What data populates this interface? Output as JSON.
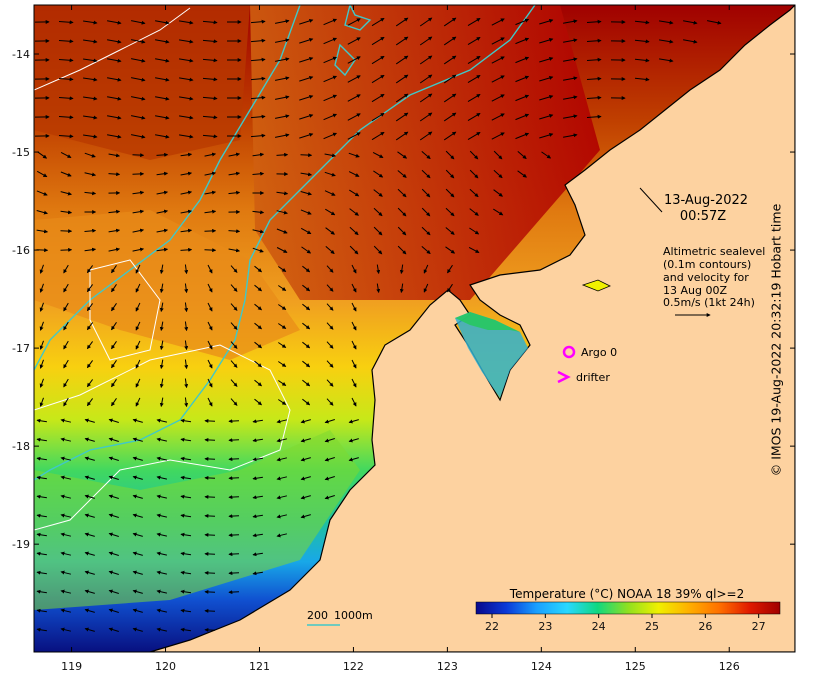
{
  "map": {
    "x_ticks": [
      "119",
      "120",
      "121",
      "122",
      "123",
      "124",
      "125",
      "126"
    ],
    "y_ticks": [
      "-14",
      "-15",
      "-16",
      "-17",
      "-18",
      "-19"
    ],
    "xlim": [
      118.6,
      126.7
    ],
    "ylim": [
      -20.1,
      -13.5
    ]
  },
  "annotation": {
    "date": "13-Aug-2022",
    "time": "00:57Z",
    "altimetry_lines": [
      "Altimetric sealevel",
      "(0.1m contours)",
      "and velocity for",
      "13 Aug 00Z",
      "0.5m/s (1kt 24h)"
    ]
  },
  "legend": {
    "argo_label": "Argo 0",
    "drifter_label": "drifter",
    "argo_color": "#ff00ff",
    "drifter_color": "#ff00ff"
  },
  "depth_legend": {
    "label_200": "200",
    "label_1000": "1000m",
    "contour_color": "#40c8c8"
  },
  "colorbar": {
    "title": "Temperature (°C) NOAA 18 39% ql>=2",
    "ticks": [
      "22",
      "23",
      "24",
      "25",
      "26",
      "27"
    ],
    "range": [
      21.7,
      27.4
    ],
    "stops": [
      "#08088c",
      "#0a3ad8",
      "#1aa0ff",
      "#28d8ff",
      "#10d880",
      "#90e020",
      "#f0f000",
      "#ffb000",
      "#ff7000",
      "#e01a00",
      "#a00000"
    ]
  },
  "credit": "© IMOS 19-Aug-2022 20:32:19 Hobart time",
  "colors": {
    "land": "#fdd2a0",
    "coast": "#000000",
    "isobath": "#40c8c8",
    "sealevel_contour": "#ffffff",
    "arrow": "#000000"
  }
}
